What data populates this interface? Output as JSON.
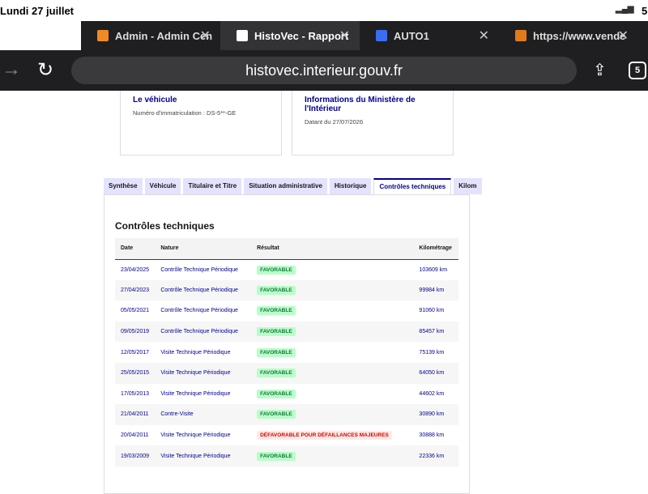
{
  "status_bar": {
    "time": "Lundi 27 juillet",
    "battery": "5"
  },
  "browser_tabs": [
    "Admin - Admin Cen",
    "HistoVec - Rapport",
    "AUTO1",
    "https://www.vende"
  ],
  "tab_count": "5",
  "address": "histovec.interieur.gouv.fr",
  "cards": [
    {
      "title": "Le véhicule",
      "text": "Numéro d'immatriculation : DS-5**-GE"
    },
    {
      "title": "Informations du Ministère de l'Intérieur",
      "text": "Datant du 27/07/2026"
    }
  ],
  "nav_tabs": [
    "Synthèse",
    "Véhicule",
    "Titulaire et Titre",
    "Situation administrative",
    "Historique",
    "Contrôles techniques",
    "Kilom"
  ],
  "section_title": "Contrôles techniques",
  "table": {
    "headers": [
      "Date",
      "Nature",
      "Résultat",
      "Kilométrage"
    ],
    "rows": [
      [
        "23/04/2025",
        "Contrôle Technique Périodique",
        "FAVORABLE",
        "103609 km"
      ],
      [
        "27/04/2023",
        "Contrôle Technique Périodique",
        "FAVORABLE",
        "99984 km"
      ],
      [
        "05/05/2021",
        "Contrôle Technique Périodique",
        "FAVORABLE",
        "91060 km"
      ],
      [
        "09/05/2019",
        "Contrôle Technique Périodique",
        "FAVORABLE",
        "85457 km"
      ],
      [
        "12/05/2017",
        "Visite Technique Périodique",
        "FAVORABLE",
        "75139 km"
      ],
      [
        "25/05/2015",
        "Visite Technique Périodique",
        "FAVORABLE",
        "64050 km"
      ],
      [
        "17/05/2013",
        "Visite Technique Périodique",
        "FAVORABLE",
        "44602 km"
      ],
      [
        "21/04/2011",
        "Contre-Visite",
        "FAVORABLE",
        "30890 km"
      ],
      [
        "20/04/2011",
        "Visite Technique Périodique",
        "DÉFAVORABLE POUR DÉFAILLANCES MAJEURES",
        "30888 km"
      ],
      [
        "19/03/2009",
        "Visite Technique Périodique",
        "FAVORABLE",
        "22336 km"
      ]
    ]
  }
}
